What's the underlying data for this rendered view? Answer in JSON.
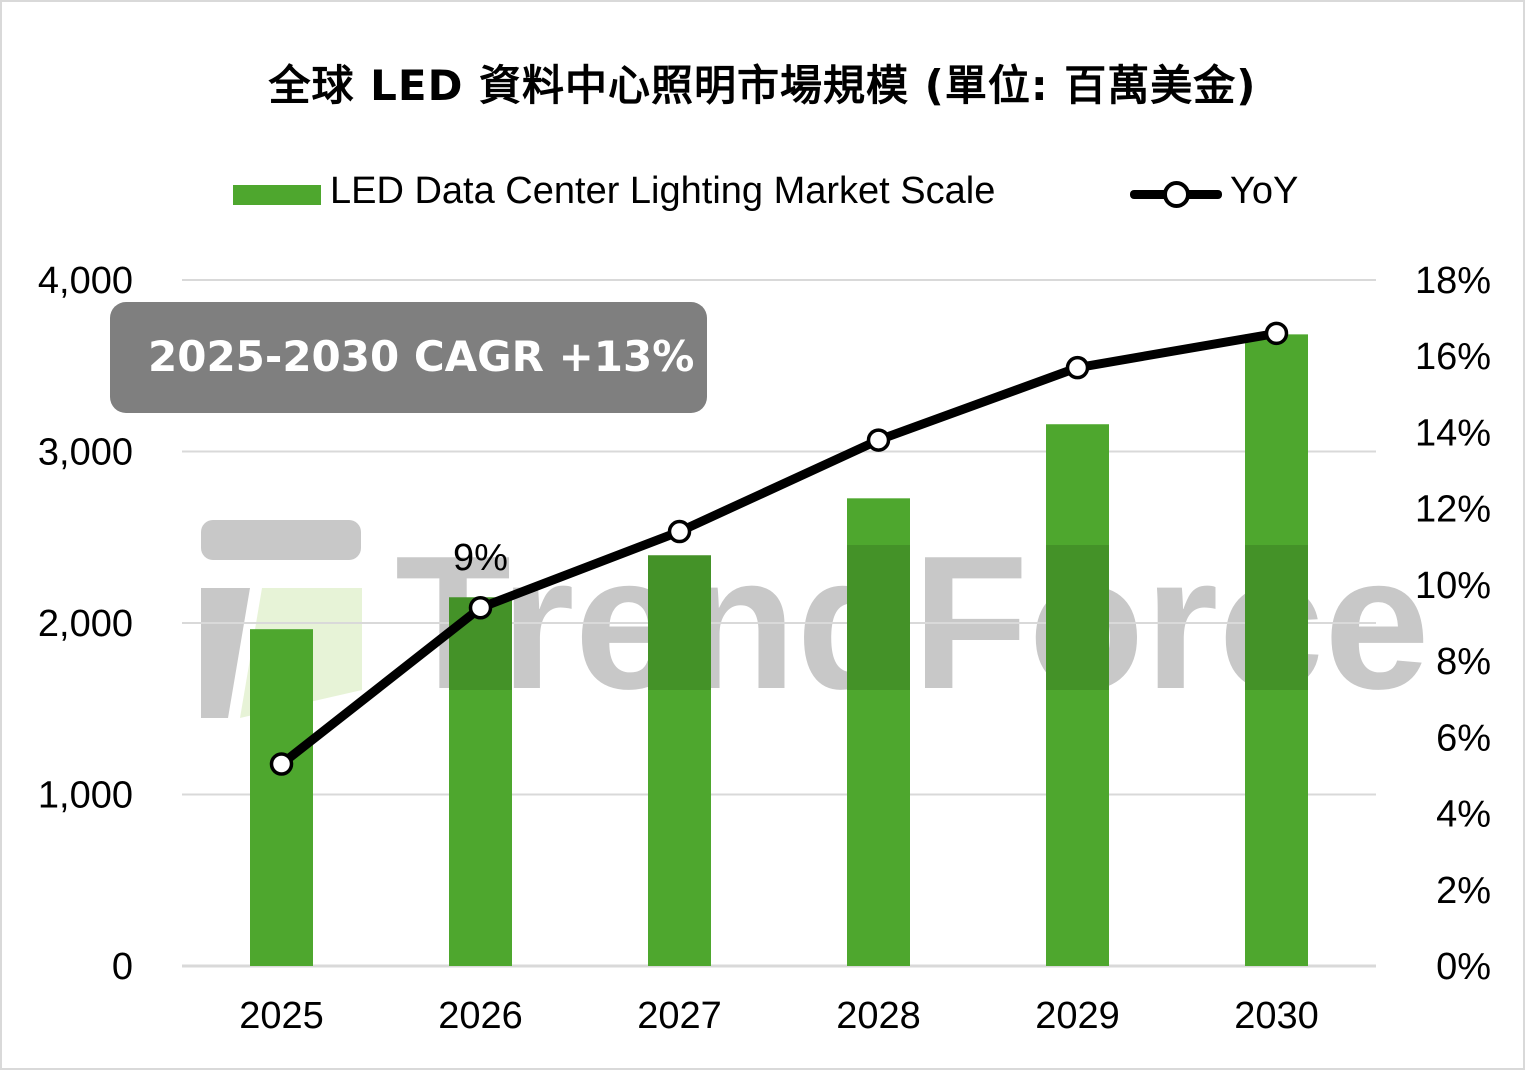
{
  "chart_data": {
    "type": "bar",
    "title": "全球 LED 資料中心照明市場規模 (單位: 百萬美金)",
    "categories": [
      "2025",
      "2026",
      "2027",
      "2028",
      "2029",
      "2030"
    ],
    "series": [
      {
        "name": "LED Data Center Lighting Market Scale",
        "type": "bar",
        "axis": "left",
        "color": "#4ea72e",
        "values": [
          1964,
          2150,
          2395,
          2727,
          3159,
          3683
        ]
      },
      {
        "name": "YoY",
        "type": "line",
        "axis": "right",
        "color": "#000000",
        "values": [
          5.3,
          9.4,
          11.4,
          13.8,
          15.7,
          16.6
        ],
        "unit": "%"
      }
    ],
    "y_left": {
      "min": 0,
      "max": 4000,
      "ticks": [
        0,
        1000,
        2000,
        3000,
        4000
      ],
      "tick_labels": [
        "0",
        "1,000",
        "2,000",
        "3,000",
        "4,000"
      ]
    },
    "y_right": {
      "min": 0,
      "max": 18,
      "ticks": [
        0,
        2,
        4,
        6,
        8,
        10,
        12,
        14,
        16,
        18
      ],
      "tick_labels": [
        "0%",
        "2%",
        "4%",
        "6%",
        "8%",
        "10%",
        "12%",
        "14%",
        "16%",
        "18%"
      ]
    },
    "xlabel": "",
    "ylabel": "",
    "grid": true,
    "legend_position": "top",
    "annotations": [
      {
        "text": "9%",
        "category": "2026",
        "series": "YoY"
      },
      {
        "text": "2025-2030 CAGR +13%",
        "kind": "callout-box",
        "color": "#7f7f7f"
      }
    ],
    "watermark": "TrendForce"
  }
}
